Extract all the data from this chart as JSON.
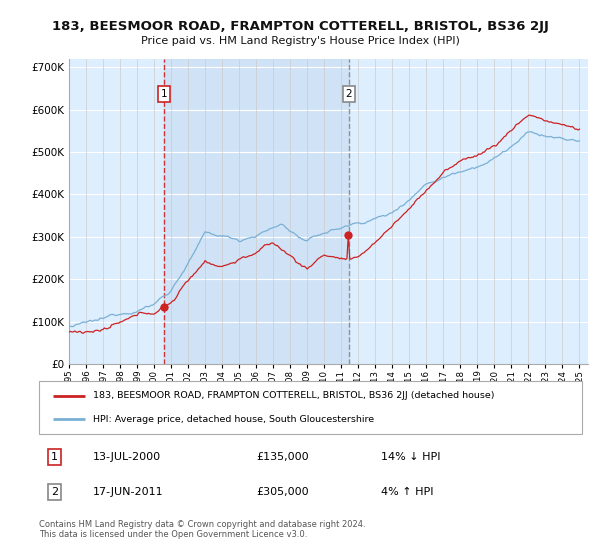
{
  "title_line1": "183, BEESMOOR ROAD, FRAMPTON COTTERELL, BRISTOL, BS36 2JJ",
  "title_line2": "Price paid vs. HM Land Registry's House Price Index (HPI)",
  "background_color": "#ffffff",
  "plot_bg_color": "#ddeeff",
  "grid_color": "#ccddee",
  "hpi_color": "#7ab0d4",
  "price_color": "#cc2222",
  "sale1_date_label": "13-JUL-2000",
  "sale1_price": 135000,
  "sale1_pct": "14% ↓ HPI",
  "sale2_date_label": "17-JUN-2011",
  "sale2_price": 305000,
  "sale2_pct": "4% ↑ HPI",
  "legend_label1": "183, BEESMOOR ROAD, FRAMPTON COTTERELL, BRISTOL, BS36 2JJ (detached house)",
  "legend_label2": "HPI: Average price, detached house, South Gloucestershire",
  "footer": "Contains HM Land Registry data © Crown copyright and database right 2024.\nThis data is licensed under the Open Government Licence v3.0.",
  "ylim": [
    0,
    720000
  ],
  "sale1_year": 2000.583,
  "sale2_year": 2011.458,
  "sale1_vline_color": "#cc2222",
  "sale2_vline_color": "#888888",
  "xmin": 1995,
  "xmax": 2025.5
}
